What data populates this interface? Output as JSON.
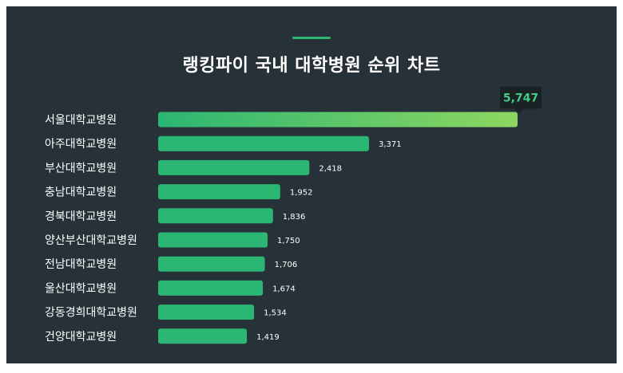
{
  "title": "랭킹파이 국내 대학병원 순위 차트",
  "colors": {
    "background": "#263238",
    "bar": "#2bb673",
    "bar_highlight_start": "#2bb673",
    "bar_highlight_end": "#8ed660",
    "accent": "#2bb673",
    "label_text": "#ffffff",
    "tooltip_bg": "#1a2226",
    "tooltip_text": "#3ecf82"
  },
  "chart_data": {
    "type": "bar",
    "orientation": "horizontal",
    "title": "랭킹파이 국내 대학병원 순위 차트",
    "categories": [
      "서울대학교병원",
      "아주대학교병원",
      "부산대학교병원",
      "충남대학교병원",
      "경북대학교병원",
      "양산부산대학교병원",
      "전남대학교병원",
      "울산대학교병원",
      "강동경희대학교병원",
      "건양대학교병원"
    ],
    "values": [
      5747,
      3371,
      2418,
      1952,
      1836,
      1750,
      1706,
      1674,
      1534,
      1419
    ],
    "value_labels": [
      "5,747",
      "3,371",
      "2,418",
      "1,952",
      "1,836",
      "1,750",
      "1,706",
      "1,674",
      "1,534",
      "1,419"
    ],
    "highlighted_index": 0,
    "xlim": [
      0,
      5747
    ],
    "grid": false,
    "legend": "none"
  }
}
